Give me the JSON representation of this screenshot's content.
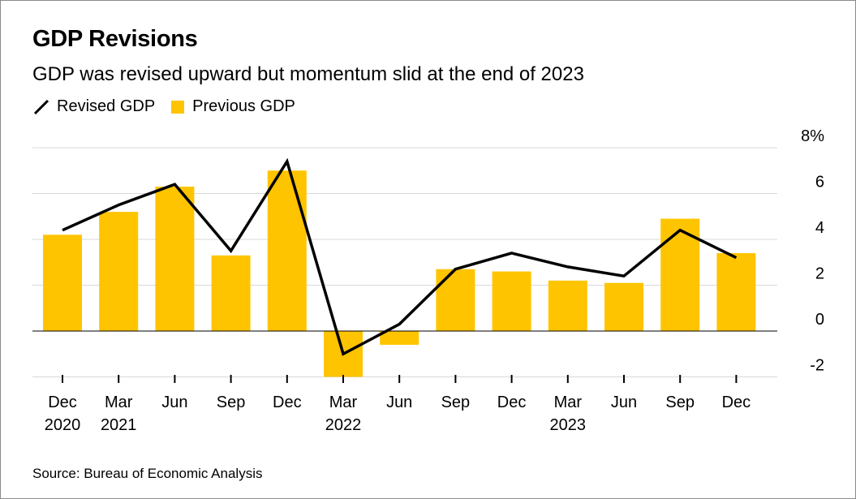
{
  "title": "GDP Revisions",
  "subtitle": "GDP was revised upward but momentum slid at the end of 2023",
  "legend": {
    "line_label": "Revised GDP",
    "bar_label": "Previous GDP"
  },
  "source": "Source: Bureau of Economic Analysis",
  "colors": {
    "bar": "#FFC400",
    "line": "#000000",
    "grid": "#d9d9d9",
    "zero_line": "#000000"
  },
  "chart_data": {
    "type": "bar",
    "categories": [
      "Dec 2020",
      "Mar 2021",
      "Jun",
      "Sep",
      "Dec",
      "Mar 2022",
      "Jun",
      "Sep",
      "Dec",
      "Mar 2023",
      "Jun",
      "Sep",
      "Dec"
    ],
    "x_tick_labels": [
      [
        "Dec",
        "2020"
      ],
      [
        "Mar",
        "2021"
      ],
      [
        "Jun",
        ""
      ],
      [
        "Sep",
        ""
      ],
      [
        "Dec",
        ""
      ],
      [
        "Mar",
        "2022"
      ],
      [
        "Jun",
        ""
      ],
      [
        "Sep",
        ""
      ],
      [
        "Dec",
        ""
      ],
      [
        "Mar",
        "2023"
      ],
      [
        "Jun",
        ""
      ],
      [
        "Sep",
        ""
      ],
      [
        "Dec",
        ""
      ]
    ],
    "series": [
      {
        "name": "Previous GDP",
        "type": "bar",
        "values": [
          4.2,
          5.2,
          6.3,
          3.3,
          7.0,
          -2.0,
          -0.6,
          2.7,
          2.6,
          2.2,
          2.1,
          4.9,
          3.4
        ]
      },
      {
        "name": "Revised GDP",
        "type": "line",
        "values": [
          4.4,
          5.5,
          6.4,
          3.5,
          7.4,
          -1.0,
          0.3,
          2.7,
          3.4,
          2.8,
          2.4,
          4.4,
          3.2
        ]
      }
    ],
    "y_ticks": [
      -2,
      0,
      2,
      4,
      6,
      8
    ],
    "y_tick_labels": [
      "-2",
      "0",
      "2",
      "4",
      "6",
      "8%"
    ],
    "ylim": [
      -2,
      8
    ],
    "y_axis_side": "right",
    "grid": true,
    "legend_position": "top-left"
  }
}
